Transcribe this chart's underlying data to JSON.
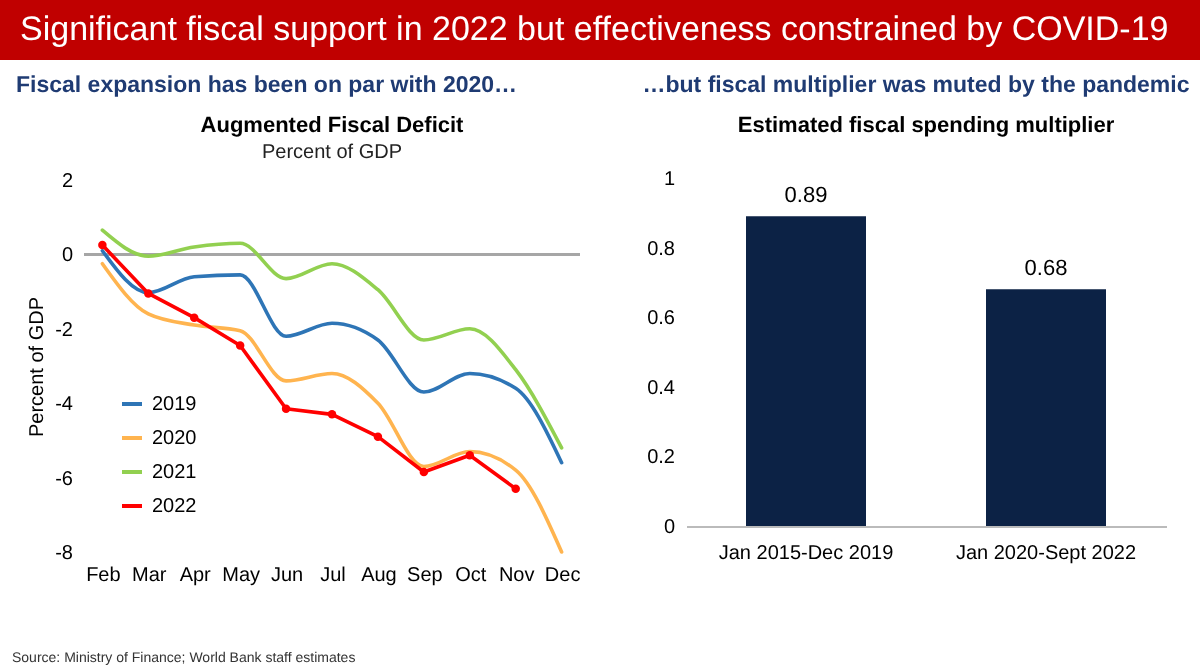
{
  "chart_data": [
    {
      "type": "line",
      "title": "Augmented Fiscal Deficit",
      "subtitle": "Percent of GDP",
      "ylabel": "Percent of GDP",
      "annotations": [
        "Significant fiscal support in 2022 but effectiveness constrained by COVID-19",
        "Fiscal expansion has been on par with 2020…",
        "Source: Ministry of Finance; World Bank staff estimates"
      ],
      "categories": [
        "Feb",
        "Mar",
        "Apr",
        "May",
        "Jun",
        "Jul",
        "Aug",
        "Sep",
        "Oct",
        "Nov",
        "Dec"
      ],
      "series": [
        {
          "name": "2019",
          "color": "#2e75b6",
          "values": [
            0.1,
            -1.03,
            -0.6,
            -0.55,
            -2.2,
            -1.85,
            -2.3,
            -3.7,
            -3.2,
            -3.6,
            -5.6
          ]
        },
        {
          "name": "2020",
          "color": "#ffb44f",
          "values": [
            -0.25,
            -1.6,
            -1.9,
            -2.05,
            -3.4,
            -3.2,
            -4.0,
            -5.7,
            -5.3,
            -5.8,
            -8.0
          ]
        },
        {
          "name": "2021",
          "color": "#92d050",
          "values": [
            0.65,
            -0.05,
            0.2,
            0.3,
            -0.65,
            -0.25,
            -0.95,
            -2.3,
            -2.0,
            -3.1,
            -5.2
          ]
        },
        {
          "name": "2022",
          "color": "#ff0000",
          "marker": "circle",
          "values": [
            0.25,
            -1.05,
            -1.7,
            -2.45,
            -4.15,
            -4.3,
            -4.9,
            -5.85,
            -5.4,
            -6.3,
            null
          ]
        }
      ],
      "ylim": [
        -8,
        2
      ],
      "yticks": [
        -8,
        -6,
        -4,
        -2,
        0,
        2
      ],
      "grid": false,
      "legend": "bottom left",
      "ref_lines": [
        {
          "axis": "y",
          "value": 0,
          "color": "#a6a6a6"
        }
      ]
    },
    {
      "type": "bar",
      "title": "Estimated fiscal spending multiplier",
      "annotations": [
        "…but fiscal multiplier was muted by the pandemic"
      ],
      "categories": [
        "Jan 2015-Dec 2019",
        "Jan 2020-Sept 2022"
      ],
      "values": [
        0.89,
        0.68
      ],
      "color": "#0c2245",
      "ylim": [
        0,
        1
      ],
      "yticks": [
        0,
        0.2,
        0.4,
        0.6,
        0.8,
        1
      ],
      "grid": false,
      "data_labels": true
    }
  ]
}
